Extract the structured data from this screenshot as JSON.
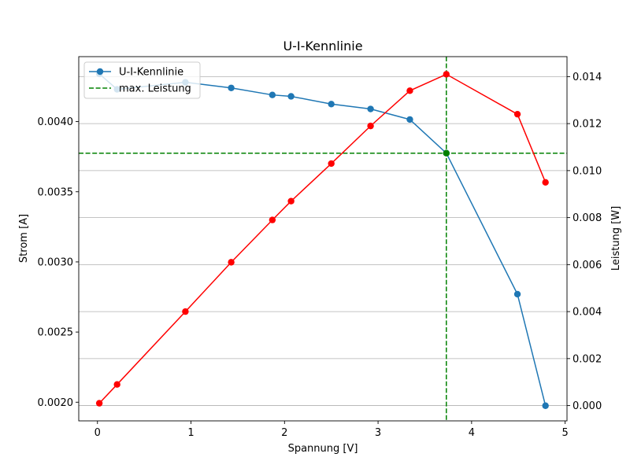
{
  "chart_data": {
    "type": "line",
    "title": "U-I-Kennlinie",
    "xlabel": "Spannung [V]",
    "ylabel": "Strom [A]",
    "ylabel_right": "Leistung [W]",
    "xlim": [
      -0.2,
      5.02
    ],
    "ylim": [
      0.001867,
      0.004463
    ],
    "ylim_right": [
      -0.00065,
      0.01485
    ],
    "x_ticks": [
      0,
      1,
      2,
      3,
      4,
      5
    ],
    "x_tick_labels": [
      "0",
      "1",
      "2",
      "3",
      "4",
      "5"
    ],
    "y_ticks": [
      0.002,
      0.0025,
      0.003,
      0.0035,
      0.004
    ],
    "y_tick_labels": [
      "0.0020",
      "0.0025",
      "0.0030",
      "0.0035",
      "0.0040"
    ],
    "y_right_ticks": [
      0,
      0.002,
      0.004,
      0.006,
      0.008,
      0.01,
      0.012,
      0.014
    ],
    "y_right_tick_labels": [
      "0.000",
      "0.002",
      "0.004",
      "0.006",
      "0.008",
      "0.010",
      "0.012",
      "0.014"
    ],
    "grid": "horizontal lines at right-axis ticks",
    "legend_position": "upper-left",
    "colors": {
      "current": "#1f77b4",
      "power": "#ff0000",
      "max_power": "#008000"
    },
    "series": [
      {
        "name": "U-I-Kennlinie",
        "axis": "left",
        "color": "#1f77b4",
        "marker": "circle",
        "x": [
          0.02,
          0.21,
          0.94,
          1.43,
          1.87,
          2.07,
          2.5,
          2.92,
          3.34,
          3.73,
          4.49,
          4.79
        ],
        "y": [
          0.00434,
          0.00423,
          0.00428,
          0.00424,
          0.00419,
          0.00418,
          0.004125,
          0.00409,
          0.004015,
          0.003775,
          0.00277,
          0.001975
        ]
      },
      {
        "name": "",
        "axis": "right",
        "color": "#ff0000",
        "marker": "circle",
        "x": [
          0.02,
          0.21,
          0.94,
          1.43,
          1.87,
          2.07,
          2.5,
          2.92,
          3.34,
          3.73,
          4.49,
          4.79
        ],
        "y": [
          0.0001,
          0.0009,
          0.004,
          0.0061,
          0.0079,
          0.0087,
          0.0103,
          0.0119,
          0.0134,
          0.0141,
          0.0124,
          0.0095
        ]
      }
    ],
    "max_power": {
      "legend_label": "max. Leistung",
      "color": "#008000",
      "line_style": "dashed",
      "voltage": 3.73,
      "current": 0.003775,
      "power": 0.0141
    },
    "legend": [
      {
        "label": "U-I-Kennlinie",
        "style": "line-marker",
        "color": "#1f77b4"
      },
      {
        "label": "max. Leistung",
        "style": "dashed",
        "color": "#008000"
      }
    ]
  }
}
